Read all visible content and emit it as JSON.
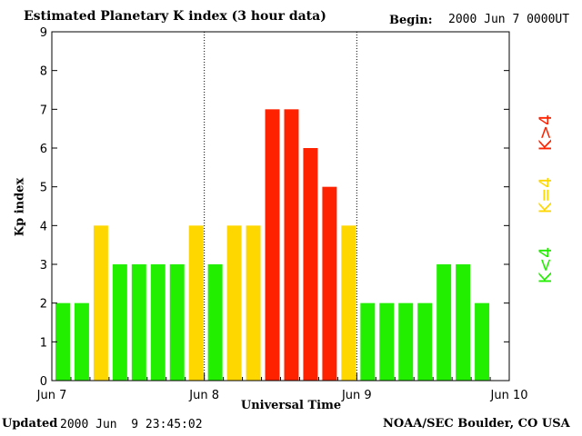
{
  "header": {
    "title": "Estimated Planetary K index (3 hour data)",
    "begin_label": "Begin:",
    "begin_value": "2000 Jun 7 0000UT"
  },
  "footer": {
    "updated_label": "Updated",
    "updated_value": "2000 Jun  9 23:45:02",
    "credit": "NOAA/SEC Boulder, CO USA"
  },
  "legend": {
    "below": "K<4",
    "equal": "K=4",
    "above": "K>4"
  },
  "colors": {
    "below": "#22ee00",
    "equal": "#ffd700",
    "above": "#ff2200",
    "axis": "#000000"
  },
  "chart_data": {
    "type": "bar",
    "title": "Estimated Planetary K index (3 hour data)",
    "xlabel": "Universal Time",
    "ylabel": "Kp index",
    "ylim": [
      0,
      9
    ],
    "yticks": [
      0,
      1,
      2,
      3,
      4,
      5,
      6,
      7,
      8,
      9
    ],
    "day_labels": [
      "Jun 7",
      "Jun 8",
      "Jun 9",
      "Jun 10"
    ],
    "day_dividers": true,
    "interval_hours": 3,
    "values": [
      2,
      2,
      4,
      3,
      3,
      3,
      3,
      4,
      3,
      4,
      4,
      7,
      7,
      6,
      5,
      4,
      2,
      2,
      2,
      2,
      3,
      3,
      2
    ]
  }
}
